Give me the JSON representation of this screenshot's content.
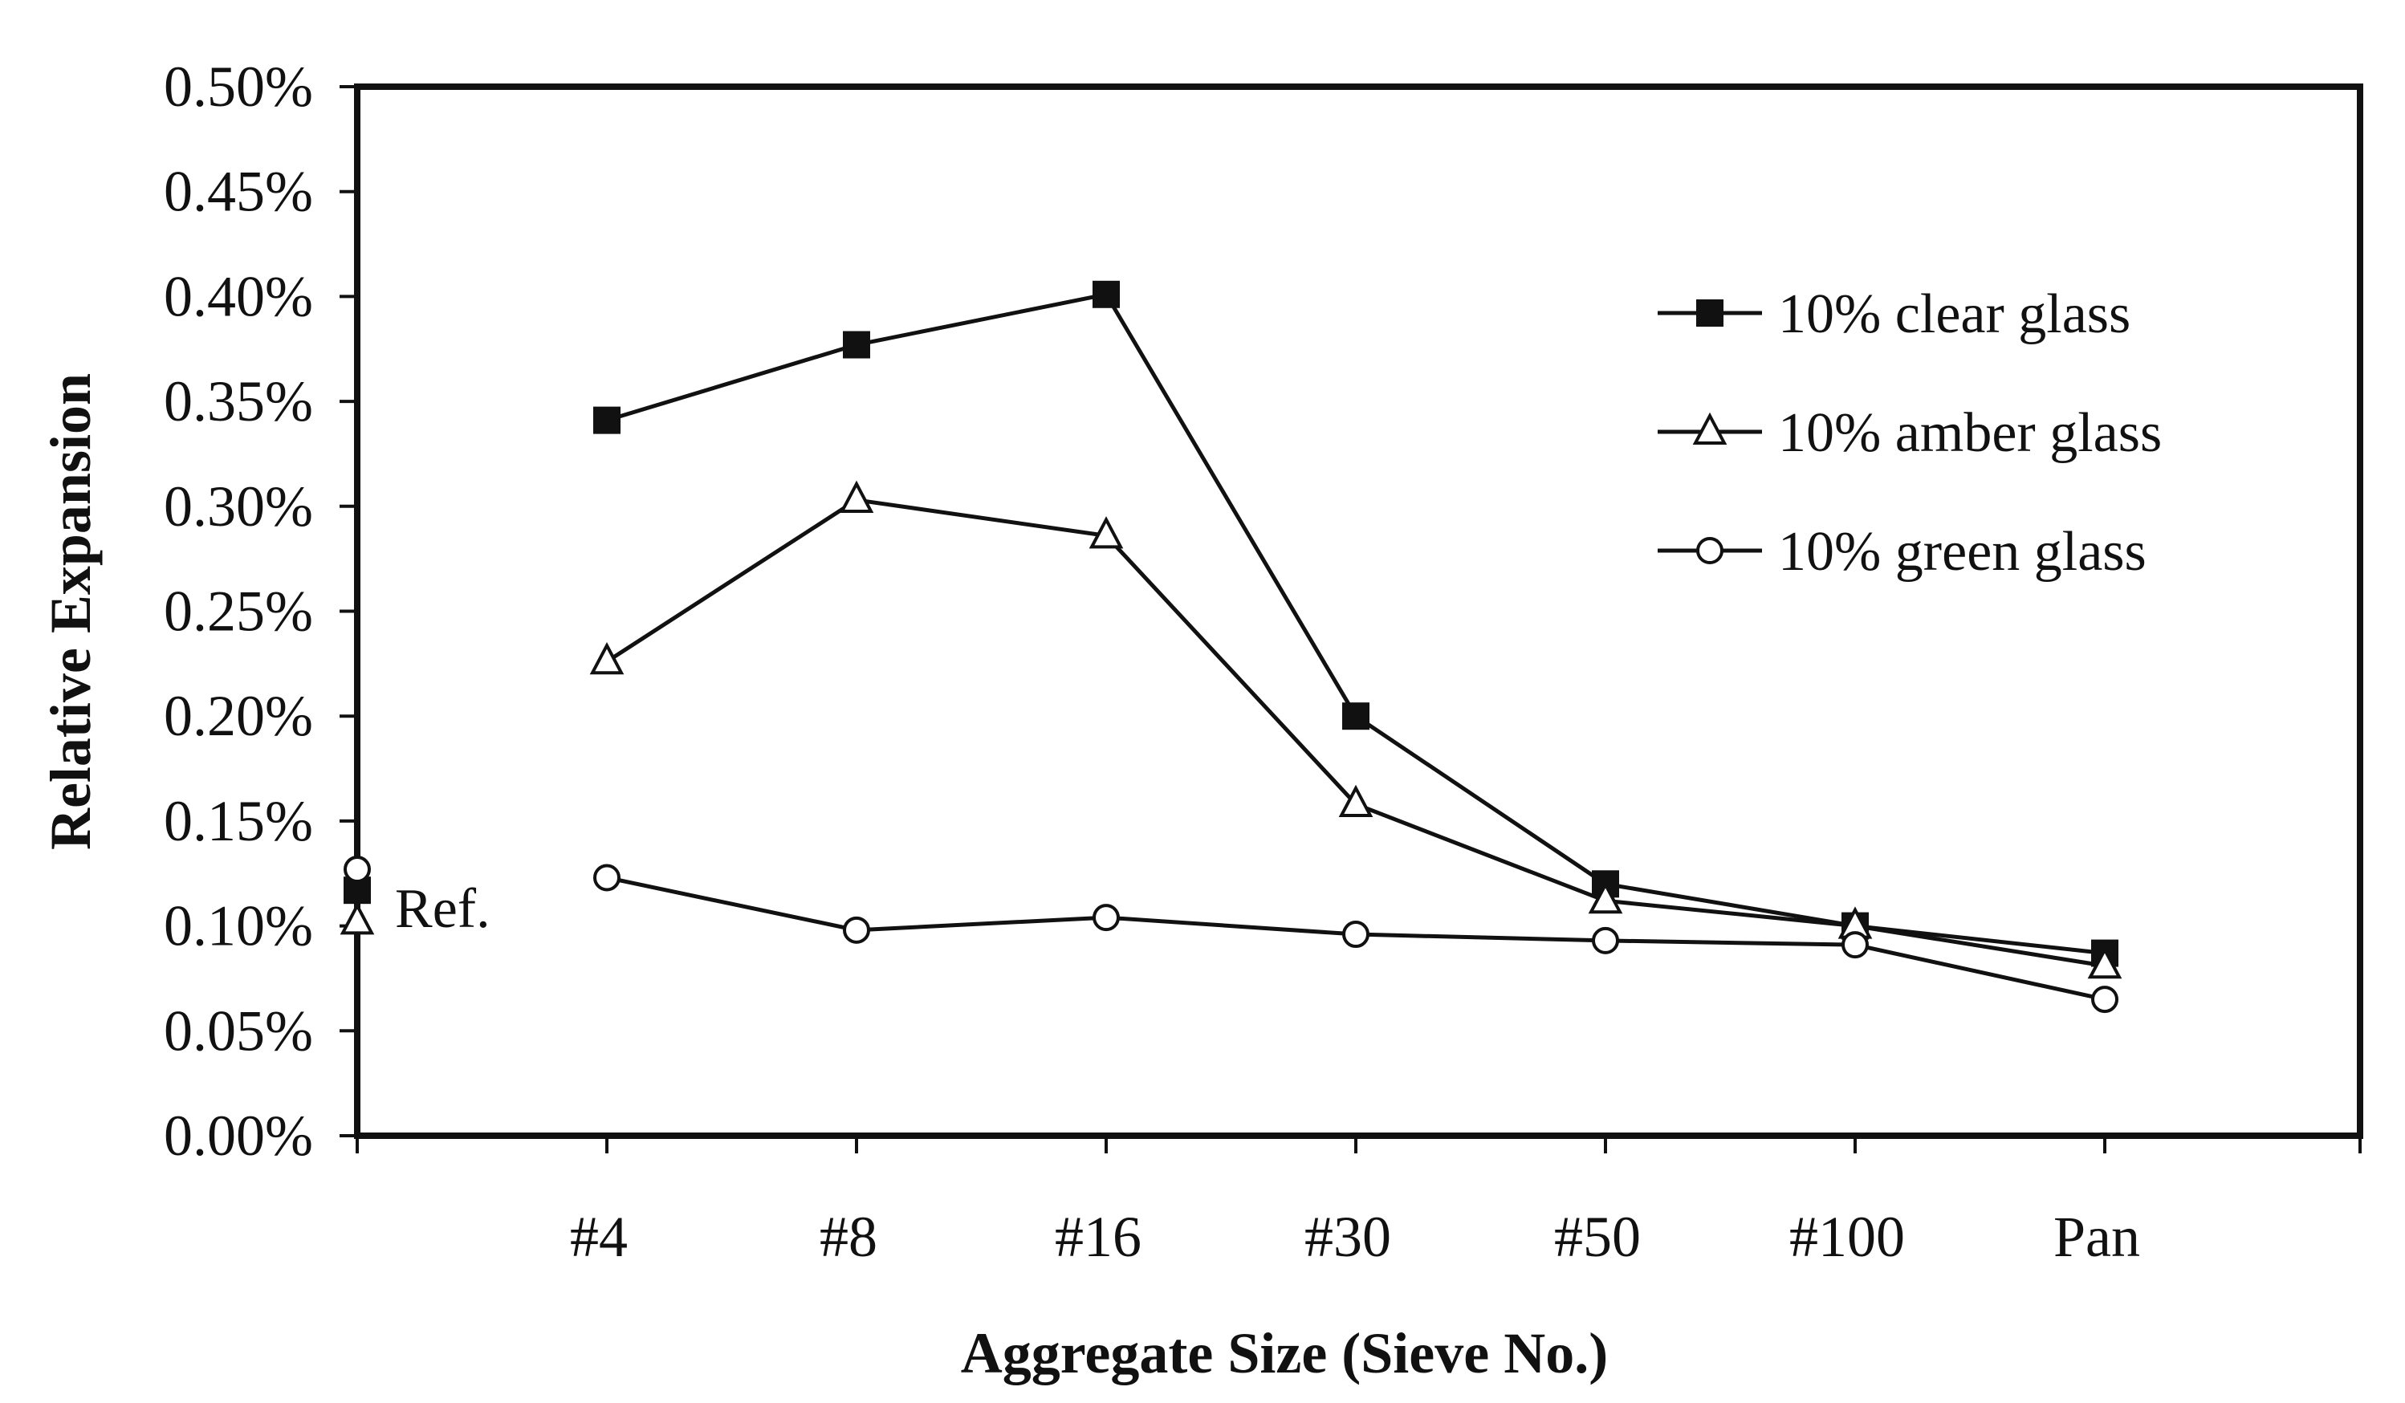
{
  "chart_data": {
    "type": "line",
    "title": "",
    "xlabel": "Aggregate Size (Sieve No.)",
    "ylabel": "Relative Expansion",
    "categories": [
      "",
      "#4",
      "#8",
      "#16",
      "#30",
      "#50",
      "#100",
      "Pan"
    ],
    "ylim": [
      0,
      0.005
    ],
    "yticks": [
      "0.00%",
      "0.05%",
      "0.10%",
      "0.15%",
      "0.20%",
      "0.25%",
      "0.30%",
      "0.35%",
      "0.40%",
      "0.45%",
      "0.50%"
    ],
    "grid": false,
    "legend_position": "top-right",
    "reference_label": "Ref.",
    "series": [
      {
        "name": "10% clear glass",
        "marker": "filled-square",
        "values": [
          0.00117,
          0.00341,
          0.00377,
          0.00401,
          0.002,
          0.0012,
          0.001,
          0.00087
        ]
      },
      {
        "name": "10% amber glass",
        "marker": "open-triangle",
        "values": [
          0.00102,
          0.00226,
          0.00303,
          0.00286,
          0.00158,
          0.00112,
          0.001,
          0.00081
        ]
      },
      {
        "name": "10% green glass",
        "marker": "open-circle",
        "values": [
          0.00127,
          0.00123,
          0.00098,
          0.00104,
          0.00096,
          0.00093,
          0.00091,
          0.00065
        ]
      }
    ]
  }
}
